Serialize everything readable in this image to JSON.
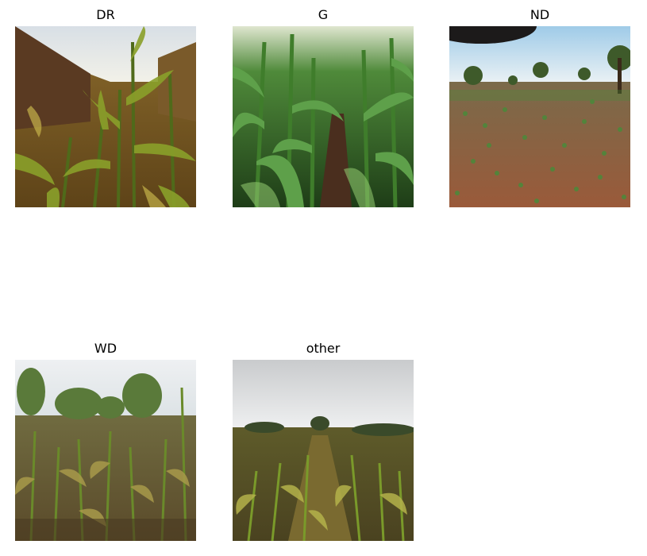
{
  "panels": [
    {
      "title": "DR"
    },
    {
      "title": "G"
    },
    {
      "title": "ND"
    },
    {
      "title": "WD"
    },
    {
      "title": "other"
    }
  ]
}
